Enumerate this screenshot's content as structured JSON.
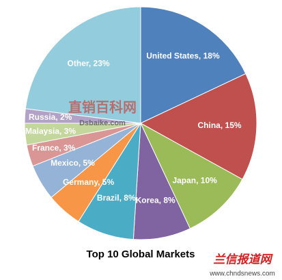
{
  "chart_data": {
    "type": "pie",
    "title": "Top 10 Global Markets",
    "values": [
      18,
      15,
      10,
      8,
      8,
      5,
      5,
      3,
      3,
      2,
      23
    ],
    "value_labels": [
      "United States, 18%",
      "China, 15%",
      "Japan, 10%",
      "Korea, 8%",
      "Brazil, 8%",
      "Germany, 5%",
      "Mexico, 5%",
      "France, 3%",
      "Malaysia, 3%",
      "Russia, 2%",
      "Other, 23%"
    ],
    "colors": [
      "#4f81bd",
      "#c0504d",
      "#9bbb59",
      "#8064a2",
      "#4bacc6",
      "#f79646",
      "#95b3d7",
      "#d99694",
      "#c3d69b",
      "#b3a2c7",
      "#93cddd"
    ]
  },
  "watermarks": {
    "center": "直销百科网",
    "center_url": "Dsbaike.com",
    "corner": "兰信报道网",
    "corner_url": "www.chndsnews.com"
  }
}
